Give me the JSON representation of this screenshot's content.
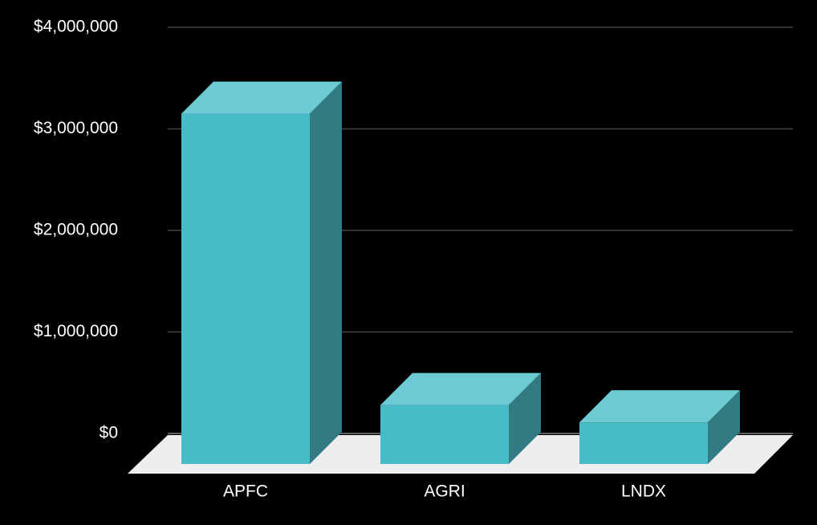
{
  "chart_data": {
    "type": "bar3d",
    "categories": [
      "APFC",
      "AGRI",
      "LNDX"
    ],
    "values": [
      3450000,
      580000,
      410000
    ],
    "color": "#47bcc6",
    "top_color": "#6ccad3",
    "side_color": "#317c82",
    "floor_color": "#eeeeee",
    "ylim": [
      0,
      4000000
    ],
    "yticks": [
      {
        "value": 0,
        "label": "$0"
      },
      {
        "value": 1000000,
        "label": "$1,000,000"
      },
      {
        "value": 2000000,
        "label": "$2,000,000"
      },
      {
        "value": 3000000,
        "label": "$3,000,000"
      },
      {
        "value": 4000000,
        "label": "$4,000,000"
      }
    ],
    "grid": true
  }
}
